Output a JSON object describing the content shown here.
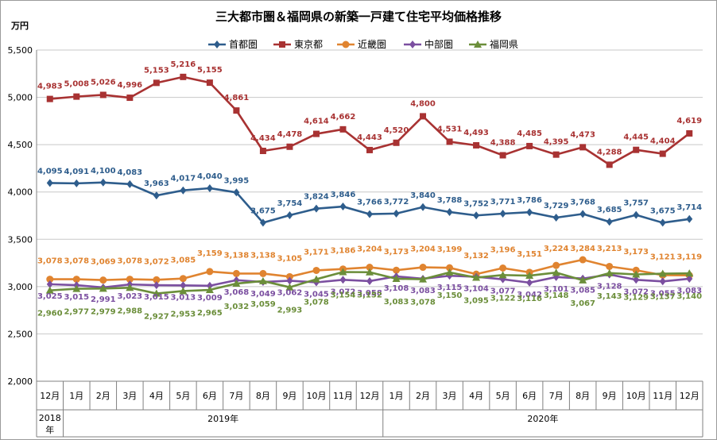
{
  "chart_data": {
    "type": "line",
    "title": "三大都市圏＆福岡県の新築一戸建て住宅平均価格推移",
    "ylabel": "万円",
    "ylim": [
      2000,
      5500
    ],
    "yticks": [
      "2,000",
      "2,500",
      "3,000",
      "3,500",
      "4,000",
      "4,500",
      "5,000",
      "5,500"
    ],
    "grid": "horizontal",
    "legend_position": "top",
    "categories": [
      "12月",
      "1月",
      "2月",
      "3月",
      "4月",
      "5月",
      "6月",
      "7月",
      "8月",
      "9月",
      "10月",
      "11月",
      "12月",
      "1月",
      "2月",
      "3月",
      "4月",
      "5月",
      "6月",
      "7月",
      "8月",
      "9月",
      "10月",
      "11月",
      "12月"
    ],
    "year_groups": [
      {
        "label": "2018年",
        "start": 0,
        "end": 0
      },
      {
        "label": "2019年",
        "start": 1,
        "end": 12
      },
      {
        "label": "2020年",
        "start": 13,
        "end": 24
      }
    ],
    "series": [
      {
        "name": "首都圏",
        "color": "#2E5D8C",
        "marker": "diamond",
        "values": [
          4095,
          4091,
          4100,
          4083,
          3963,
          4017,
          4040,
          3995,
          3675,
          3754,
          3824,
          3846,
          3766,
          3772,
          3840,
          3788,
          3752,
          3771,
          3786,
          3729,
          3768,
          3685,
          3757,
          3675,
          3714
        ]
      },
      {
        "name": "東京都",
        "color": "#A83232",
        "marker": "square",
        "values": [
          4983,
          5008,
          5026,
          4996,
          5153,
          5216,
          5155,
          4861,
          4434,
          4478,
          4614,
          4662,
          4443,
          4520,
          4800,
          4531,
          4493,
          4388,
          4485,
          4395,
          4473,
          4288,
          4445,
          4404,
          4619
        ]
      },
      {
        "name": "近畿圏",
        "color": "#E08430",
        "marker": "circle",
        "values": [
          3078,
          3078,
          3069,
          3078,
          3072,
          3085,
          3159,
          3138,
          3138,
          3105,
          3171,
          3186,
          3204,
          3173,
          3204,
          3199,
          3132,
          3196,
          3151,
          3224,
          3284,
          3213,
          3173,
          3121,
          3119
        ]
      },
      {
        "name": "中部圏",
        "color": "#7B4FA0",
        "marker": "diamond",
        "values": [
          3025,
          3015,
          2991,
          3023,
          3015,
          3013,
          3009,
          3068,
          3049,
          3062,
          3045,
          3072,
          3058,
          3108,
          3083,
          3115,
          3104,
          3077,
          3042,
          3101,
          3085,
          3128,
          3072,
          3055,
          3083
        ]
      },
      {
        "name": "福岡県",
        "color": "#6B8E3A",
        "marker": "triangle",
        "values": [
          2960,
          2977,
          2979,
          2988,
          2927,
          2953,
          2965,
          3032,
          3059,
          2993,
          3078,
          3154,
          3152,
          3083,
          3078,
          3150,
          3095,
          3122,
          3116,
          3148,
          3067,
          3143,
          3129,
          3137,
          3140
        ]
      }
    ]
  }
}
